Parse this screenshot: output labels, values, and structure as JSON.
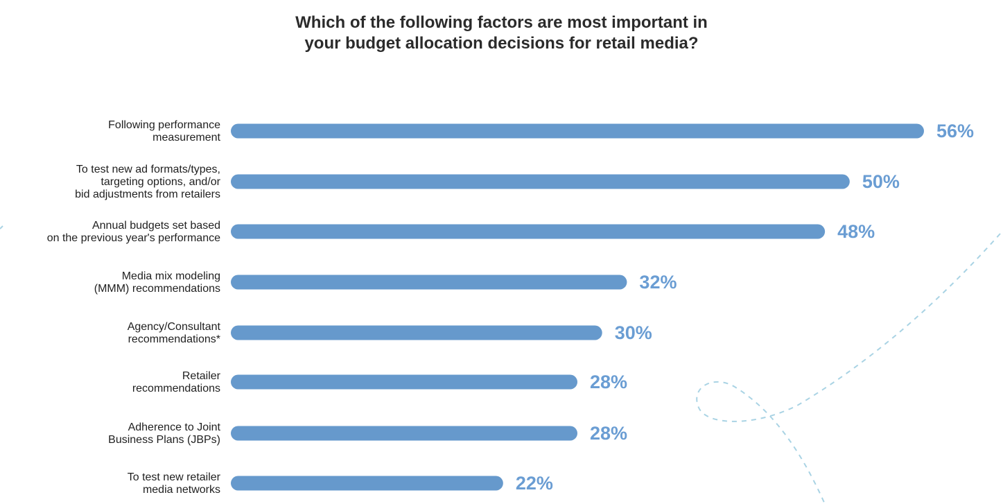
{
  "chart_data": {
    "type": "bar",
    "orientation": "horizontal",
    "title_lines": [
      "Which of the following factors are most important in",
      "your budget allocation decisions for retail media?"
    ],
    "unit": "%",
    "categories": [
      [
        "Following performance",
        "measurement"
      ],
      [
        "To test new ad formats/types,",
        "targeting options, and/or",
        "bid adjustments from retailers"
      ],
      [
        "Annual budgets set based",
        "on the previous year's performance"
      ],
      [
        "Media mix modeling",
        "(MMM) recommendations"
      ],
      [
        "Agency/Consultant",
        "recommendations*"
      ],
      [
        "Retailer",
        "recommendations"
      ],
      [
        "Adherence to Joint",
        "Business Plans (JBPs)"
      ],
      [
        "To test new retailer",
        "media networks"
      ]
    ],
    "values": [
      56,
      50,
      48,
      32,
      30,
      28,
      28,
      22
    ],
    "value_labels": [
      "56%",
      "50%",
      "48%",
      "32%",
      "30%",
      "28%",
      "28%",
      "22%"
    ],
    "xlim": [
      0,
      56
    ],
    "grid": false,
    "legend": "none",
    "bar_color": "#6699cc",
    "label_color": "#6a9dd3"
  }
}
